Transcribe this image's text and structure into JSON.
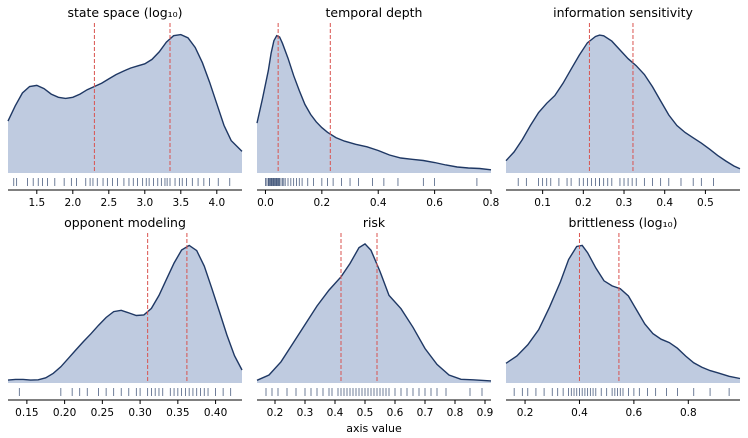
{
  "figure": {
    "xlabel": "axis value"
  },
  "chart_data": [
    {
      "type": "area",
      "title": "state space (log₁₀)",
      "xlim": [
        1.1,
        4.35
      ],
      "xticks": [
        1.5,
        2.0,
        2.5,
        3.0,
        3.5,
        4.0
      ],
      "xtick_labels": [
        "1.5",
        "2.0",
        "2.5",
        "3.0",
        "3.5",
        "4.0"
      ],
      "density": {
        "x": [
          1.1,
          1.2,
          1.3,
          1.4,
          1.5,
          1.6,
          1.7,
          1.8,
          1.9,
          2.0,
          2.1,
          2.2,
          2.3,
          2.4,
          2.5,
          2.6,
          2.7,
          2.8,
          2.9,
          3.0,
          3.1,
          3.2,
          3.3,
          3.4,
          3.5,
          3.6,
          3.7,
          3.8,
          3.9,
          4.0,
          4.1,
          4.2,
          4.35
        ],
        "y": [
          0.48,
          0.62,
          0.74,
          0.8,
          0.81,
          0.78,
          0.73,
          0.7,
          0.69,
          0.7,
          0.73,
          0.77,
          0.8,
          0.83,
          0.87,
          0.91,
          0.94,
          0.97,
          0.99,
          1.01,
          1.05,
          1.12,
          1.21,
          1.27,
          1.28,
          1.25,
          1.16,
          1.02,
          0.84,
          0.64,
          0.44,
          0.3,
          0.2
        ]
      },
      "ylim": [
        0,
        1.35
      ],
      "vlines": [
        2.3,
        3.35
      ],
      "rug": [
        1.18,
        1.22,
        1.37,
        1.45,
        1.52,
        1.58,
        1.65,
        1.75,
        1.88,
        1.98,
        2.05,
        2.18,
        2.24,
        2.28,
        2.34,
        2.42,
        2.48,
        2.55,
        2.62,
        2.71,
        2.78,
        2.84,
        2.9,
        2.97,
        3.02,
        3.06,
        3.12,
        3.18,
        3.23,
        3.28,
        3.31,
        3.35,
        3.42,
        3.48,
        3.52,
        3.58,
        3.66,
        3.74,
        3.82,
        3.9,
        4.02,
        4.18
      ]
    },
    {
      "type": "area",
      "title": "temporal depth",
      "xlim": [
        -0.03,
        0.8
      ],
      "xticks": [
        0.0,
        0.2,
        0.4,
        0.6,
        0.8
      ],
      "xtick_labels": [
        "0.0",
        "0.2",
        "0.4",
        "0.6",
        "0.8"
      ],
      "density": {
        "x": [
          -0.03,
          -0.01,
          0.01,
          0.02,
          0.03,
          0.04,
          0.05,
          0.06,
          0.08,
          0.1,
          0.12,
          0.14,
          0.16,
          0.18,
          0.2,
          0.22,
          0.25,
          0.28,
          0.32,
          0.36,
          0.4,
          0.44,
          0.48,
          0.52,
          0.56,
          0.6,
          0.64,
          0.68,
          0.72,
          0.76,
          0.8
        ],
        "y": [
          2.0,
          3.0,
          4.1,
          4.8,
          5.3,
          5.5,
          5.45,
          5.2,
          4.6,
          3.9,
          3.3,
          2.75,
          2.35,
          2.05,
          1.82,
          1.63,
          1.42,
          1.28,
          1.15,
          1.05,
          0.9,
          0.72,
          0.6,
          0.55,
          0.5,
          0.42,
          0.32,
          0.24,
          0.2,
          0.18,
          0.13
        ]
      },
      "ylim": [
        0,
        5.85
      ],
      "vlines": [
        0.045,
        0.23
      ],
      "rug": [
        0.0,
        0.005,
        0.01,
        0.012,
        0.015,
        0.018,
        0.02,
        0.022,
        0.025,
        0.028,
        0.03,
        0.032,
        0.035,
        0.038,
        0.04,
        0.042,
        0.045,
        0.048,
        0.05,
        0.055,
        0.06,
        0.065,
        0.07,
        0.08,
        0.09,
        0.1,
        0.11,
        0.12,
        0.13,
        0.15,
        0.17,
        0.2,
        0.22,
        0.24,
        0.27,
        0.3,
        0.33,
        0.38,
        0.42,
        0.47,
        0.56,
        0.6,
        0.75
      ]
    },
    {
      "type": "area",
      "title": "information sensitivity",
      "xlim": [
        0.01,
        0.585
      ],
      "xticks": [
        0.1,
        0.2,
        0.3,
        0.4,
        0.5
      ],
      "xtick_labels": [
        "0.1",
        "0.2",
        "0.3",
        "0.4",
        "0.5"
      ],
      "density": {
        "x": [
          0.01,
          0.03,
          0.05,
          0.07,
          0.09,
          0.11,
          0.13,
          0.15,
          0.17,
          0.19,
          0.21,
          0.23,
          0.24,
          0.25,
          0.27,
          0.29,
          0.31,
          0.33,
          0.35,
          0.37,
          0.39,
          0.41,
          0.43,
          0.45,
          0.47,
          0.49,
          0.51,
          0.53,
          0.55,
          0.57,
          0.585
        ],
        "y": [
          0.35,
          0.6,
          0.95,
          1.35,
          1.72,
          1.98,
          2.2,
          2.55,
          2.95,
          3.35,
          3.7,
          3.88,
          3.92,
          3.9,
          3.75,
          3.5,
          3.25,
          3.05,
          2.8,
          2.45,
          2.05,
          1.65,
          1.35,
          1.15,
          1.0,
          0.85,
          0.68,
          0.5,
          0.34,
          0.2,
          0.12
        ]
      },
      "ylim": [
        0,
        4.15
      ],
      "vlines": [
        0.215,
        0.322
      ],
      "rug": [
        0.04,
        0.06,
        0.09,
        0.1,
        0.11,
        0.12,
        0.14,
        0.16,
        0.17,
        0.19,
        0.2,
        0.21,
        0.22,
        0.23,
        0.24,
        0.24,
        0.25,
        0.26,
        0.27,
        0.29,
        0.3,
        0.31,
        0.32,
        0.33,
        0.35,
        0.37,
        0.39,
        0.41,
        0.44,
        0.47,
        0.49,
        0.52
      ]
    },
    {
      "type": "area",
      "title": "opponent modeling",
      "xlim": [
        0.125,
        0.435
      ],
      "xticks": [
        0.15,
        0.2,
        0.25,
        0.3,
        0.35,
        0.4
      ],
      "xtick_labels": [
        "0.15",
        "0.20",
        "0.25",
        "0.30",
        "0.35",
        "0.40"
      ],
      "density": {
        "x": [
          0.125,
          0.135,
          0.145,
          0.155,
          0.165,
          0.175,
          0.185,
          0.195,
          0.205,
          0.215,
          0.225,
          0.235,
          0.245,
          0.255,
          0.265,
          0.275,
          0.285,
          0.295,
          0.305,
          0.315,
          0.325,
          0.335,
          0.345,
          0.355,
          0.365,
          0.375,
          0.385,
          0.395,
          0.405,
          0.415,
          0.425,
          0.435
        ],
        "y": [
          0.45,
          0.55,
          0.55,
          0.45,
          0.5,
          0.8,
          1.5,
          2.5,
          3.8,
          5.1,
          6.4,
          7.6,
          8.9,
          10.1,
          11.0,
          11.2,
          10.8,
          10.4,
          10.5,
          11.5,
          13.5,
          16.0,
          18.5,
          20.5,
          21.2,
          20.4,
          18.0,
          14.6,
          11.0,
          7.4,
          4.2,
          2.0
        ]
      },
      "ylim": [
        0,
        22.5
      ],
      "vlines": [
        0.31,
        0.362
      ],
      "rug": [
        0.14,
        0.195,
        0.21,
        0.22,
        0.23,
        0.245,
        0.255,
        0.265,
        0.275,
        0.285,
        0.295,
        0.3,
        0.31,
        0.315,
        0.32,
        0.325,
        0.33,
        0.34,
        0.345,
        0.35,
        0.355,
        0.36,
        0.365,
        0.37,
        0.375,
        0.38,
        0.385,
        0.39,
        0.4,
        0.41,
        0.42
      ]
    },
    {
      "type": "area",
      "title": "risk",
      "xlim": [
        0.14,
        0.92
      ],
      "xticks": [
        0.2,
        0.3,
        0.4,
        0.5,
        0.6,
        0.7,
        0.8,
        0.9
      ],
      "xtick_labels": [
        "0.2",
        "0.3",
        "0.4",
        "0.5",
        "0.6",
        "0.7",
        "0.8",
        "0.9"
      ],
      "density": {
        "x": [
          0.14,
          0.18,
          0.22,
          0.26,
          0.3,
          0.34,
          0.38,
          0.42,
          0.45,
          0.48,
          0.5,
          0.52,
          0.55,
          0.58,
          0.62,
          0.66,
          0.7,
          0.74,
          0.78,
          0.82,
          0.86,
          0.92
        ],
        "y": [
          0.05,
          0.15,
          0.4,
          0.75,
          1.1,
          1.45,
          1.75,
          2.0,
          2.25,
          2.55,
          2.62,
          2.5,
          2.1,
          1.65,
          1.4,
          1.05,
          0.65,
          0.35,
          0.15,
          0.07,
          0.06,
          0.04
        ]
      },
      "ylim": [
        0,
        2.75
      ],
      "vlines": [
        0.42,
        0.54
      ],
      "rug": [
        0.17,
        0.19,
        0.21,
        0.24,
        0.27,
        0.3,
        0.32,
        0.34,
        0.36,
        0.38,
        0.39,
        0.41,
        0.42,
        0.43,
        0.44,
        0.45,
        0.46,
        0.47,
        0.48,
        0.49,
        0.5,
        0.51,
        0.52,
        0.53,
        0.54,
        0.55,
        0.56,
        0.57,
        0.58,
        0.6,
        0.62,
        0.64,
        0.66,
        0.68,
        0.7,
        0.72,
        0.74,
        0.77,
        0.85,
        0.89
      ]
    },
    {
      "type": "area",
      "title": "brittleness (log₁₀)",
      "xlim": [
        0.13,
        0.99
      ],
      "xticks": [
        0.2,
        0.4,
        0.6,
        0.8
      ],
      "xtick_labels": [
        "0.2",
        "0.4",
        "0.6",
        "0.8"
      ],
      "density": {
        "x": [
          0.13,
          0.17,
          0.21,
          0.25,
          0.29,
          0.33,
          0.36,
          0.39,
          0.41,
          0.43,
          0.46,
          0.49,
          0.52,
          0.55,
          0.58,
          0.61,
          0.64,
          0.67,
          0.7,
          0.73,
          0.76,
          0.79,
          0.82,
          0.85,
          0.88,
          0.91,
          0.95,
          0.99
        ],
        "y": [
          0.35,
          0.48,
          0.68,
          0.95,
          1.35,
          1.8,
          2.2,
          2.43,
          2.45,
          2.32,
          2.05,
          1.82,
          1.73,
          1.68,
          1.55,
          1.3,
          1.05,
          0.88,
          0.78,
          0.72,
          0.62,
          0.48,
          0.36,
          0.28,
          0.22,
          0.18,
          0.12,
          0.08
        ]
      },
      "ylim": [
        0,
        2.6
      ],
      "vlines": [
        0.4,
        0.545
      ],
      "rug": [
        0.16,
        0.19,
        0.21,
        0.24,
        0.27,
        0.3,
        0.32,
        0.34,
        0.36,
        0.37,
        0.38,
        0.39,
        0.4,
        0.41,
        0.42,
        0.43,
        0.44,
        0.45,
        0.46,
        0.48,
        0.5,
        0.52,
        0.53,
        0.54,
        0.55,
        0.56,
        0.58,
        0.6,
        0.62,
        0.65,
        0.68,
        0.72,
        0.76,
        0.82,
        0.88,
        0.95
      ]
    }
  ],
  "style": {
    "fill": "#bfcbe0",
    "line": "#1f3864",
    "vline": "#d9534f",
    "rug": "#4c5f80",
    "axis": "#000000"
  }
}
